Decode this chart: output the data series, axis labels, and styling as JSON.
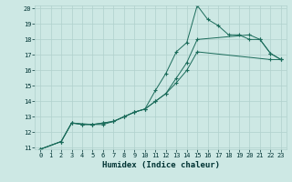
{
  "xlabel": "Humidex (Indice chaleur)",
  "background_color": "#cde8e4",
  "grid_color": "#b0d0cc",
  "line_color": "#1a6b5a",
  "xlim": [
    -0.5,
    23.5
  ],
  "ylim": [
    10.9,
    20.2
  ],
  "xticks": [
    0,
    1,
    2,
    3,
    4,
    5,
    6,
    7,
    8,
    9,
    10,
    11,
    12,
    13,
    14,
    15,
    16,
    17,
    18,
    19,
    20,
    21,
    22,
    23
  ],
  "yticks": [
    11,
    12,
    13,
    14,
    15,
    16,
    17,
    18,
    19,
    20
  ],
  "line1_x": [
    0,
    2,
    3,
    5,
    6,
    7,
    8,
    9,
    10,
    11,
    12,
    13,
    14,
    15,
    16,
    17,
    18,
    19,
    20,
    21,
    22,
    23
  ],
  "line1_y": [
    10.9,
    11.4,
    12.6,
    12.5,
    12.6,
    12.7,
    13.0,
    13.3,
    13.5,
    14.7,
    15.8,
    17.2,
    17.8,
    20.2,
    19.3,
    18.9,
    18.3,
    18.3,
    18.0,
    18.0,
    17.1,
    16.7
  ],
  "line2_x": [
    0,
    2,
    3,
    4,
    5,
    6,
    7,
    8,
    9,
    10,
    11,
    12,
    13,
    14,
    15,
    20,
    21,
    22,
    23
  ],
  "line2_y": [
    10.9,
    11.4,
    12.6,
    12.5,
    12.5,
    12.6,
    12.7,
    13.0,
    13.3,
    13.5,
    14.0,
    14.5,
    15.5,
    16.5,
    18.0,
    18.3,
    18.0,
    17.1,
    16.7
  ],
  "line3_x": [
    0,
    2,
    3,
    4,
    5,
    6,
    7,
    8,
    9,
    10,
    11,
    12,
    13,
    14,
    15,
    22,
    23
  ],
  "line3_y": [
    10.9,
    11.4,
    12.6,
    12.5,
    12.5,
    12.5,
    12.7,
    13.0,
    13.3,
    13.5,
    14.0,
    14.5,
    15.2,
    16.0,
    17.2,
    16.7,
    16.7
  ],
  "xlabel_fontsize": 6.5,
  "tick_fontsize": 5.0
}
